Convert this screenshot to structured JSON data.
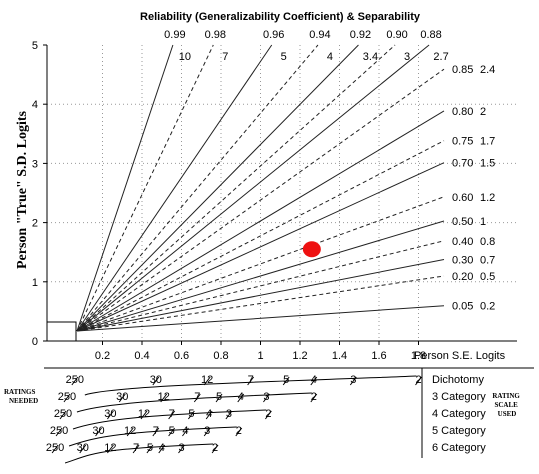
{
  "chart_data": {
    "type": "line",
    "title": "Reliability (Generalizability Coefficient) & Separability",
    "xlabel": "Person S.E. Logits",
    "ylabel": "Person \"True\" S.D. Logits",
    "xlim": [
      0,
      2.2
    ],
    "ylim": [
      0,
      5
    ],
    "x_ticks": [
      "0.2",
      "0.4",
      "0.6",
      "0.8",
      "1",
      "1.2",
      "1.4",
      "1.6",
      "1.8"
    ],
    "y_ticks": [
      "0",
      "1",
      "2",
      "3",
      "4",
      "5"
    ],
    "grid": true,
    "series": [
      {
        "reliability": "0.99",
        "separation": "10",
        "slope": 9.95,
        "style": "solid"
      },
      {
        "reliability": "0.98",
        "separation": "7",
        "slope": 7.0,
        "style": "dashed"
      },
      {
        "reliability": "0.96",
        "separation": "5",
        "slope": 4.9,
        "style": "solid"
      },
      {
        "reliability": "0.94",
        "separation": "4",
        "slope": 3.96,
        "style": "dashed"
      },
      {
        "reliability": "0.92",
        "separation": "3.4",
        "slope": 3.39,
        "style": "solid"
      },
      {
        "reliability": "0.90",
        "separation": "3",
        "slope": 3.0,
        "style": "dashed"
      },
      {
        "reliability": "0.88",
        "separation": "2.7",
        "slope": 2.71,
        "style": "solid"
      },
      {
        "reliability": "0.85",
        "separation": "2.4",
        "slope": 2.38,
        "style": "dashed"
      },
      {
        "reliability": "0.80",
        "separation": "2",
        "slope": 2.0,
        "style": "solid"
      },
      {
        "reliability": "0.75",
        "separation": "1.7",
        "slope": 1.73,
        "style": "dashed"
      },
      {
        "reliability": "0.70",
        "separation": "1.5",
        "slope": 1.53,
        "style": "solid"
      },
      {
        "reliability": "0.60",
        "separation": "1.2",
        "slope": 1.22,
        "style": "dashed"
      },
      {
        "reliability": "0.50",
        "separation": "1",
        "slope": 1.0,
        "style": "solid"
      },
      {
        "reliability": "0.40",
        "separation": "0.8",
        "slope": 0.82,
        "style": "dashed"
      },
      {
        "reliability": "0.30",
        "separation": "0.7",
        "slope": 0.65,
        "style": "solid"
      },
      {
        "reliability": "0.20",
        "separation": "0.5",
        "slope": 0.5,
        "style": "dashed"
      },
      {
        "reliability": "0.05",
        "separation": "0.2",
        "slope": 0.23,
        "style": "solid"
      }
    ],
    "marker": {
      "x": 1.26,
      "y": 1.55,
      "color": "#ee1111"
    },
    "ratings_needed_label": "RATINGS NEEDED",
    "rating_scale_label": "RATING SCALE USED",
    "rating_scales": [
      {
        "name": "Dichotomy",
        "points": [
          {
            "label": "250",
            "x": 0.06
          },
          {
            "label": "30",
            "x": 0.47
          },
          {
            "label": "12",
            "x": 0.73
          },
          {
            "label": "7",
            "x": 0.95
          },
          {
            "label": "5",
            "x": 1.13
          },
          {
            "label": "4",
            "x": 1.27
          },
          {
            "label": "3",
            "x": 1.47
          },
          {
            "label": "2",
            "x": 1.8
          }
        ]
      },
      {
        "name": "3 Category",
        "points": [
          {
            "label": "250",
            "x": 0.02
          },
          {
            "label": "30",
            "x": 0.3
          },
          {
            "label": "12",
            "x": 0.51
          },
          {
            "label": "7",
            "x": 0.68
          },
          {
            "label": "5",
            "x": 0.79
          },
          {
            "label": "4",
            "x": 0.9
          },
          {
            "label": "3",
            "x": 1.03
          },
          {
            "label": "2",
            "x": 1.27
          }
        ]
      },
      {
        "name": "4 Category",
        "points": [
          {
            "label": "250",
            "x": 0.0
          },
          {
            "label": "30",
            "x": 0.24
          },
          {
            "label": "12",
            "x": 0.41
          },
          {
            "label": "7",
            "x": 0.55
          },
          {
            "label": "5",
            "x": 0.65
          },
          {
            "label": "4",
            "x": 0.74
          },
          {
            "label": "3",
            "x": 0.84
          },
          {
            "label": "2",
            "x": 1.04
          }
        ]
      },
      {
        "name": "5 Category",
        "points": [
          {
            "label": "250",
            "x": -0.02
          },
          {
            "label": "30",
            "x": 0.18
          },
          {
            "label": "12",
            "x": 0.34
          },
          {
            "label": "7",
            "x": 0.47
          },
          {
            "label": "5",
            "x": 0.55
          },
          {
            "label": "4",
            "x": 0.62
          },
          {
            "label": "3",
            "x": 0.73
          },
          {
            "label": "2",
            "x": 0.89
          }
        ]
      },
      {
        "name": "6 Category",
        "points": [
          {
            "label": "250",
            "x": -0.04
          },
          {
            "label": "30",
            "x": 0.1
          },
          {
            "label": "12",
            "x": 0.24
          },
          {
            "label": "7",
            "x": 0.37
          },
          {
            "label": "5",
            "x": 0.44
          },
          {
            "label": "4",
            "x": 0.5
          },
          {
            "label": "3",
            "x": 0.6
          },
          {
            "label": "2",
            "x": 0.77
          }
        ]
      }
    ]
  }
}
